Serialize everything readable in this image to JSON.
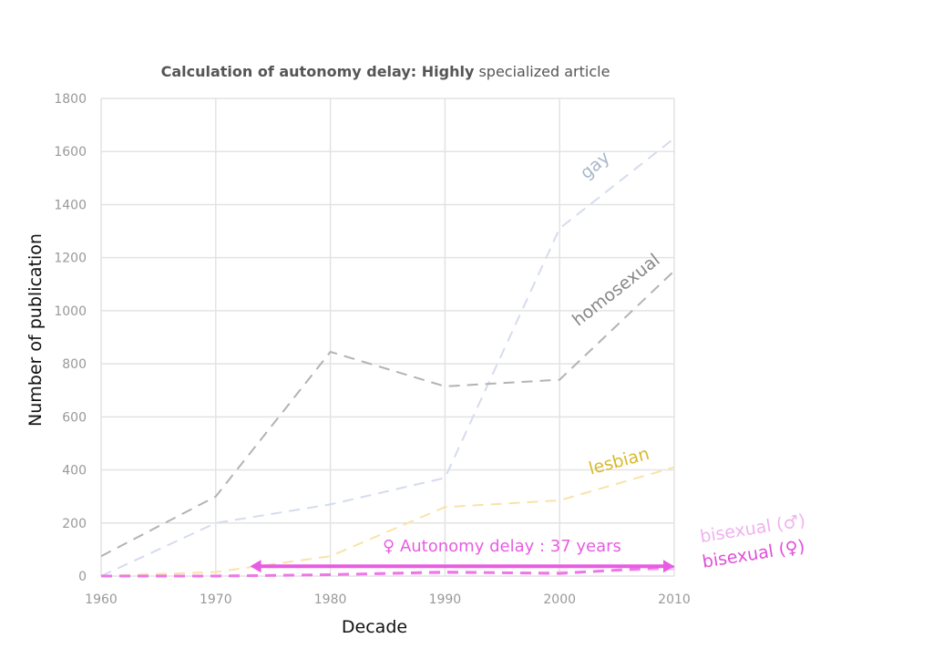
{
  "chart_data": {
    "type": "line",
    "title_bold": "Calculation of autonomy delay: Highly",
    "title_rest": " specialized article",
    "xlabel": "Decade",
    "ylabel": "Number of publication",
    "x": [
      1960,
      1970,
      1980,
      1990,
      2000,
      2010
    ],
    "xlim": [
      1960,
      2010
    ],
    "ylim": [
      0,
      1800
    ],
    "xticks": [
      "1960",
      "1970",
      "1980",
      "1990",
      "2000",
      "2010"
    ],
    "yticks": [
      "0",
      "200",
      "400",
      "600",
      "800",
      "1000",
      "1200",
      "1400",
      "1600",
      "1800"
    ],
    "grid": true,
    "series": [
      {
        "name": "gay",
        "color": "#d5dcec",
        "label_color": "#a9b7c9",
        "values": [
          0,
          200,
          270,
          370,
          1310,
          1650
        ]
      },
      {
        "name": "homosexual",
        "color": "#b3b3b3",
        "label_color": "#888888",
        "values": [
          75,
          300,
          845,
          715,
          740,
          1150
        ]
      },
      {
        "name": "lesbian",
        "color": "#f8e3a8",
        "label_color": "#d9b92a",
        "values": [
          0,
          15,
          75,
          260,
          285,
          410
        ]
      },
      {
        "name": "bisexual (♂)",
        "color": "#f6c7f4",
        "label_color": "#f0b2ee",
        "values": [
          0,
          2,
          5,
          10,
          15,
          25
        ]
      },
      {
        "name": "bisexual (♀)",
        "color": "#ee77e8",
        "label_color": "#e04fda",
        "values": [
          0,
          0,
          5,
          15,
          10,
          35
        ]
      }
    ],
    "annotation": {
      "text": "♀ Autonomy delay : 37 years",
      "color": "#e85ce2",
      "from_x": 1973,
      "to_x": 2010,
      "y": 30
    }
  }
}
